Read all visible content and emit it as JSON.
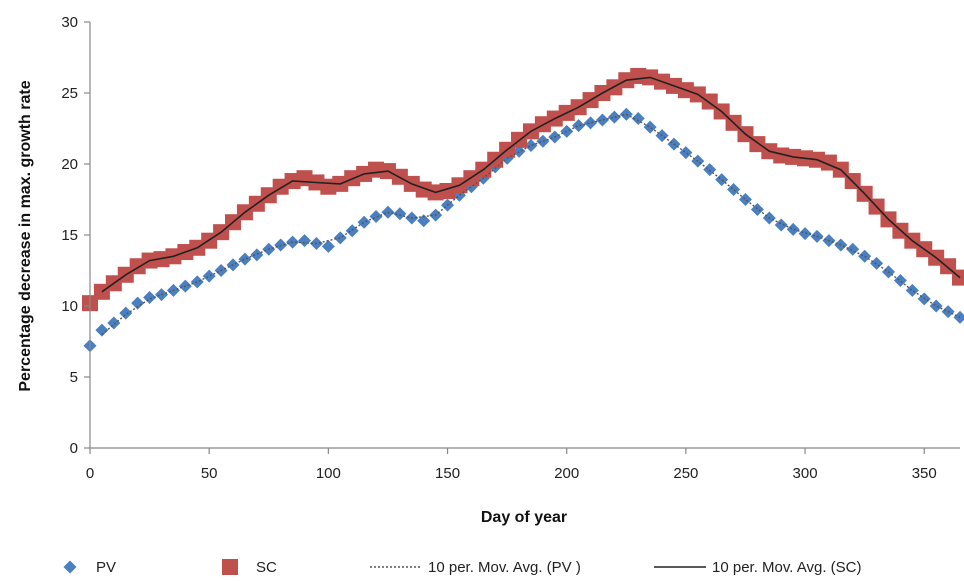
{
  "chart_data": {
    "type": "scatter",
    "xlabel": "Day of year",
    "ylabel": "Percentage decrease in max. growth rate",
    "xlim": [
      0,
      365
    ],
    "ylim": [
      0,
      30
    ],
    "xticks": [
      0,
      50,
      100,
      150,
      200,
      250,
      300,
      350
    ],
    "yticks": [
      0,
      5,
      10,
      15,
      20,
      25,
      30
    ],
    "grid": false,
    "legend_position": "bottom",
    "series": [
      {
        "name": "PV",
        "kind": "scatter",
        "marker": "diamond",
        "color": "#4a7fc1",
        "x": [
          0,
          5,
          10,
          15,
          20,
          25,
          30,
          35,
          40,
          45,
          50,
          55,
          60,
          65,
          70,
          75,
          80,
          85,
          90,
          95,
          100,
          105,
          110,
          115,
          120,
          125,
          130,
          135,
          140,
          145,
          150,
          155,
          160,
          165,
          170,
          175,
          180,
          185,
          190,
          195,
          200,
          205,
          210,
          215,
          220,
          225,
          230,
          235,
          240,
          245,
          250,
          255,
          260,
          265,
          270,
          275,
          280,
          285,
          290,
          295,
          300,
          305,
          310,
          315,
          320,
          325,
          330,
          335,
          340,
          345,
          350,
          355,
          360,
          365
        ],
        "y": [
          7.2,
          8.3,
          8.8,
          9.5,
          10.2,
          10.6,
          10.8,
          11.1,
          11.4,
          11.7,
          12.1,
          12.5,
          12.9,
          13.3,
          13.6,
          14.0,
          14.3,
          14.5,
          14.6,
          14.4,
          14.2,
          14.8,
          15.3,
          15.9,
          16.3,
          16.6,
          16.5,
          16.2,
          16.0,
          16.4,
          17.1,
          17.8,
          18.4,
          19.0,
          19.8,
          20.4,
          20.9,
          21.3,
          21.6,
          21.9,
          22.3,
          22.7,
          22.9,
          23.1,
          23.3,
          23.5,
          23.2,
          22.6,
          22.0,
          21.4,
          20.8,
          20.2,
          19.6,
          18.9,
          18.2,
          17.5,
          16.8,
          16.2,
          15.7,
          15.4,
          15.1,
          14.9,
          14.6,
          14.3,
          14.0,
          13.5,
          13.0,
          12.4,
          11.8,
          11.1,
          10.5,
          10.0,
          9.6,
          9.2
        ]
      },
      {
        "name": "SC",
        "kind": "scatter",
        "marker": "square",
        "color": "#c0504d",
        "x": [
          0,
          5,
          10,
          15,
          20,
          25,
          30,
          35,
          40,
          45,
          50,
          55,
          60,
          65,
          70,
          75,
          80,
          85,
          90,
          95,
          100,
          105,
          110,
          115,
          120,
          125,
          130,
          135,
          140,
          145,
          150,
          155,
          160,
          165,
          170,
          175,
          180,
          185,
          190,
          195,
          200,
          205,
          210,
          215,
          220,
          225,
          230,
          235,
          240,
          245,
          250,
          255,
          260,
          265,
          270,
          275,
          280,
          285,
          290,
          295,
          300,
          305,
          310,
          315,
          320,
          325,
          330,
          335,
          340,
          345,
          350,
          355,
          360,
          365
        ],
        "y": [
          10.2,
          11.0,
          11.6,
          12.2,
          12.8,
          13.2,
          13.3,
          13.5,
          13.8,
          14.1,
          14.6,
          15.2,
          15.9,
          16.6,
          17.2,
          17.8,
          18.4,
          18.8,
          19.0,
          18.7,
          18.4,
          18.6,
          19.0,
          19.3,
          19.6,
          19.5,
          19.1,
          18.6,
          18.2,
          18.0,
          18.1,
          18.5,
          19.0,
          19.6,
          20.3,
          21.0,
          21.7,
          22.3,
          22.8,
          23.2,
          23.6,
          24.0,
          24.5,
          25.0,
          25.4,
          25.9,
          26.2,
          26.1,
          25.8,
          25.5,
          25.2,
          24.9,
          24.4,
          23.7,
          22.9,
          22.1,
          21.4,
          20.9,
          20.6,
          20.5,
          20.4,
          20.3,
          20.1,
          19.6,
          18.8,
          17.9,
          17.0,
          16.1,
          15.3,
          14.6,
          14.0,
          13.4,
          12.8,
          12.0
        ]
      },
      {
        "name": "10 per. Mov. Avg. (PV )",
        "kind": "line",
        "style": "dotted",
        "color": "#555555",
        "x": [
          5,
          15,
          25,
          35,
          45,
          55,
          65,
          75,
          85,
          95,
          105,
          115,
          125,
          135,
          145,
          155,
          165,
          175,
          185,
          195,
          205,
          215,
          225,
          235,
          245,
          255,
          265,
          275,
          285,
          295,
          305,
          315,
          325,
          335,
          345,
          355,
          365
        ],
        "y": [
          8.0,
          9.4,
          10.5,
          11.1,
          11.7,
          12.5,
          13.3,
          14.0,
          14.5,
          14.4,
          14.8,
          15.9,
          16.6,
          16.2,
          16.4,
          17.8,
          19.0,
          20.4,
          21.3,
          21.9,
          22.7,
          23.1,
          23.5,
          22.6,
          21.4,
          20.2,
          18.9,
          17.5,
          16.2,
          15.4,
          14.9,
          14.3,
          13.5,
          12.4,
          11.1,
          10.0,
          9.2
        ]
      },
      {
        "name": "10 per. Mov. Avg. (SC)",
        "kind": "line",
        "style": "solid",
        "color": "#222222",
        "x": [
          5,
          15,
          25,
          35,
          45,
          55,
          65,
          75,
          85,
          95,
          105,
          115,
          125,
          135,
          145,
          155,
          165,
          175,
          185,
          195,
          205,
          215,
          225,
          235,
          245,
          255,
          265,
          275,
          285,
          295,
          305,
          315,
          325,
          335,
          345,
          355,
          365
        ],
        "y": [
          11.0,
          12.2,
          13.2,
          13.5,
          14.1,
          15.2,
          16.6,
          17.8,
          18.8,
          18.7,
          18.6,
          19.3,
          19.5,
          18.6,
          18.0,
          18.5,
          19.6,
          21.0,
          22.3,
          23.2,
          24.0,
          25.0,
          25.9,
          26.1,
          25.5,
          24.9,
          23.7,
          22.1,
          20.9,
          20.5,
          20.3,
          19.6,
          17.9,
          16.1,
          14.6,
          13.4,
          12.0
        ]
      }
    ]
  }
}
